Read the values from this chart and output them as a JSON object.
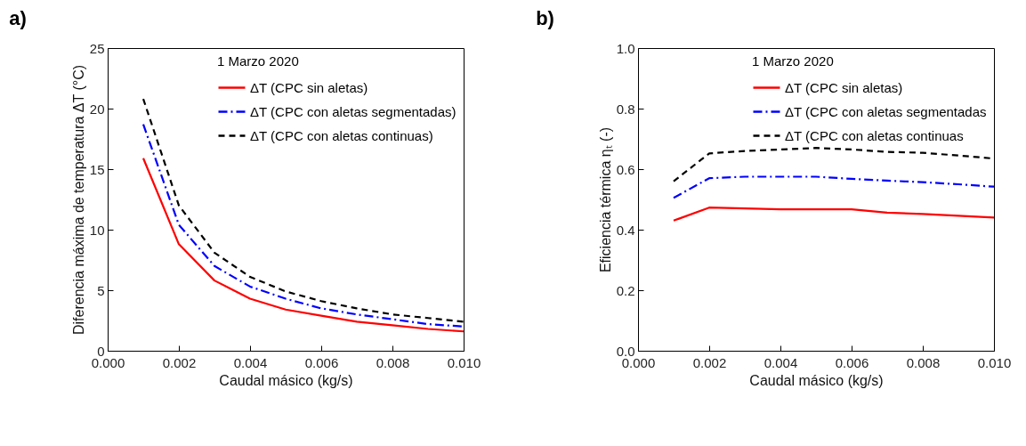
{
  "chart_data": [
    {
      "type": "line",
      "title": "a)",
      "xlabel": "Caudal másico (kg/s)",
      "ylabel": "Diferencia máxima de temperatura ΔT (°C)",
      "legend_title": "1 Marzo 2020",
      "legend": "top right",
      "grid": false,
      "x": [
        0.001,
        0.002,
        0.003,
        0.004,
        0.005,
        0.006,
        0.007,
        0.008,
        0.009,
        0.01
      ],
      "xlim": [
        0,
        0.01
      ],
      "xticks": [
        {
          "value": 0,
          "label": "0.000"
        },
        {
          "value": 0.002,
          "label": "0.002"
        },
        {
          "value": 0.004,
          "label": "0.004"
        },
        {
          "value": 0.006,
          "label": "0.006"
        },
        {
          "value": 0.008,
          "label": "0.008"
        },
        {
          "value": 0.01,
          "label": "0.010"
        }
      ],
      "ylim": [
        0,
        25
      ],
      "yticks": [
        0,
        5,
        10,
        15,
        20,
        25
      ],
      "series": [
        {
          "name": "ΔT (CPC sin aletas)",
          "color": "#ff0000",
          "line_style": "solid",
          "values": [
            15.9,
            8.8,
            5.8,
            4.3,
            3.4,
            2.9,
            2.4,
            2.1,
            1.8,
            1.6
          ]
        },
        {
          "name": "ΔT (CPC con aletas segmentadas)",
          "color": "#0000ff",
          "line_style": "dashdot",
          "values": [
            18.7,
            10.4,
            7.0,
            5.3,
            4.3,
            3.5,
            3.0,
            2.6,
            2.2,
            2.0
          ]
        },
        {
          "name": "ΔT (CPC con aletas continuas)",
          "color": "#000000",
          "line_style": "dashed",
          "values": [
            20.8,
            12.0,
            8.1,
            6.1,
            4.9,
            4.1,
            3.5,
            3.0,
            2.7,
            2.4
          ]
        }
      ]
    },
    {
      "type": "line",
      "title": "b)",
      "xlabel": "Caudal másico (kg/s)",
      "ylabel": "Eficiencia térmica ηₜ (-)",
      "legend_title": "1 Marzo 2020",
      "legend": "top right",
      "grid": false,
      "x": [
        0.001,
        0.002,
        0.003,
        0.004,
        0.005,
        0.006,
        0.007,
        0.008,
        0.009,
        0.01
      ],
      "xlim": [
        0,
        0.01
      ],
      "xticks": [
        {
          "value": 0,
          "label": "0.000"
        },
        {
          "value": 0.002,
          "label": "0.002"
        },
        {
          "value": 0.004,
          "label": "0.004"
        },
        {
          "value": 0.006,
          "label": "0.006"
        },
        {
          "value": 0.008,
          "label": "0.008"
        },
        {
          "value": 0.01,
          "label": "0.010"
        }
      ],
      "ylim": [
        0,
        1.0
      ],
      "yticks": [
        {
          "value": 0,
          "label": "0.0"
        },
        0.2,
        0.4,
        0.6,
        0.8,
        {
          "value": 1.0,
          "label": "1.0"
        }
      ],
      "series": [
        {
          "name": "ΔT (CPC sin aletas)",
          "color": "#ff0000",
          "line_style": "solid",
          "values": [
            0.43,
            0.473,
            0.47,
            0.467,
            0.467,
            0.467,
            0.456,
            0.452,
            0.446,
            0.44
          ]
        },
        {
          "name": "ΔT (CPC con aletas segmentadas",
          "color": "#0000ff",
          "line_style": "dashdot",
          "values": [
            0.505,
            0.57,
            0.575,
            0.575,
            0.575,
            0.568,
            0.562,
            0.557,
            0.55,
            0.542
          ]
        },
        {
          "name": "ΔT (CPC con aletas continuas",
          "color": "#000000",
          "line_style": "dashed",
          "values": [
            0.56,
            0.652,
            0.66,
            0.665,
            0.67,
            0.665,
            0.657,
            0.654,
            0.645,
            0.635
          ]
        }
      ]
    }
  ]
}
